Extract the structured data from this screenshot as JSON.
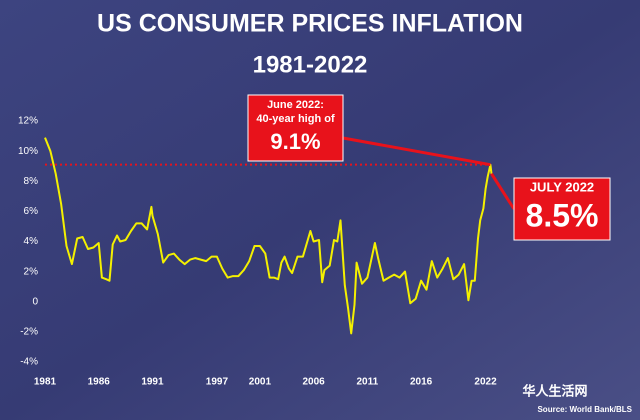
{
  "chart_data": {
    "type": "line",
    "title": "US CONSUMER PRICES INFLATION",
    "subtitle": "1981-2022",
    "source": "Source: World Bank/BLS",
    "watermark": "华人生活网",
    "color": "#f4f000",
    "x": [
      1981.0,
      1981.5,
      1982.0,
      1982.5,
      1983.0,
      1983.5,
      1984.0,
      1984.5,
      1985.0,
      1985.5,
      1986.0,
      1986.3,
      1986.7,
      1987.0,
      1987.3,
      1987.7,
      1988.0,
      1988.5,
      1989.0,
      1989.5,
      1990.0,
      1990.5,
      1990.9,
      1991.0,
      1991.5,
      1992.0,
      1992.5,
      1993.0,
      1993.5,
      1994.0,
      1994.5,
      1995.0,
      1995.5,
      1996.0,
      1996.5,
      1997.0,
      1997.5,
      1998.0,
      1998.5,
      1999.0,
      1999.5,
      2000.0,
      2000.5,
      2001.0,
      2001.5,
      2001.9,
      2002.3,
      2002.7,
      2003.0,
      2003.3,
      2003.7,
      2004.0,
      2004.5,
      2005.0,
      2005.7,
      2006.0,
      2006.5,
      2006.8,
      2007.0,
      2007.5,
      2007.9,
      2008.2,
      2008.5,
      2008.9,
      2009.2,
      2009.5,
      2009.8,
      2010.0,
      2010.5,
      2011.0,
      2011.7,
      2012.0,
      2012.5,
      2013.0,
      2013.5,
      2014.0,
      2014.5,
      2015.0,
      2015.5,
      2016.0,
      2016.5,
      2017.0,
      2017.5,
      2018.0,
      2018.5,
      2019.0,
      2019.5,
      2020.0,
      2020.4,
      2020.7,
      2021.0,
      2021.3,
      2021.5,
      2021.8,
      2022.0,
      2022.2,
      2022.45,
      2022.55
    ],
    "values": [
      10.9,
      10.0,
      8.5,
      6.5,
      3.7,
      2.5,
      4.2,
      4.3,
      3.5,
      3.6,
      3.9,
      1.6,
      1.5,
      1.4,
      3.8,
      4.4,
      4.0,
      4.1,
      4.7,
      5.2,
      5.2,
      4.8,
      6.3,
      5.7,
      4.5,
      2.6,
      3.1,
      3.2,
      2.8,
      2.5,
      2.8,
      2.9,
      2.8,
      2.7,
      3.0,
      3.0,
      2.2,
      1.6,
      1.7,
      1.7,
      2.1,
      2.7,
      3.7,
      3.7,
      3.2,
      1.6,
      1.6,
      1.5,
      2.6,
      3.0,
      2.2,
      1.9,
      3.0,
      3.0,
      4.7,
      4.0,
      4.1,
      1.3,
      2.1,
      2.4,
      4.1,
      4.0,
      5.4,
      1.1,
      -0.4,
      -2.1,
      -0.2,
      2.6,
      1.2,
      1.6,
      3.9,
      2.9,
      1.4,
      1.6,
      1.8,
      1.6,
      2.0,
      -0.1,
      0.2,
      1.4,
      0.8,
      2.7,
      1.6,
      2.2,
      2.9,
      1.5,
      1.8,
      2.5,
      0.1,
      1.4,
      1.4,
      4.2,
      5.4,
      6.2,
      7.5,
      8.3,
      9.1,
      8.5
    ],
    "xlim": [
      1981,
      2022.6
    ],
    "xticks": [
      1981,
      1986,
      1991,
      1997,
      2001,
      2006,
      2011,
      2016,
      2022
    ],
    "ylim": [
      -4,
      12
    ],
    "yticks": [
      {
        "value": 12,
        "label": "12%"
      },
      {
        "value": 10,
        "label": "10%"
      },
      {
        "value": 8,
        "label": "8%"
      },
      {
        "value": 6,
        "label": "6%"
      },
      {
        "value": 4,
        "label": "4%"
      },
      {
        "value": 2,
        "label": "2%"
      },
      0,
      {
        "value": -2,
        "label": "-2%"
      },
      {
        "value": -4,
        "label": "-4%"
      }
    ],
    "annotations": [
      {
        "lines": [
          "June 2022:",
          "40-year high of"
        ],
        "value": 9.1,
        "value_label": "9.1%",
        "x": 2022.45,
        "color": "#e8121b"
      },
      {
        "lines": [
          "JULY 2022"
        ],
        "value": 8.5,
        "value_label": "8.5%",
        "x": 2022.55,
        "color": "#e8121b"
      }
    ]
  }
}
